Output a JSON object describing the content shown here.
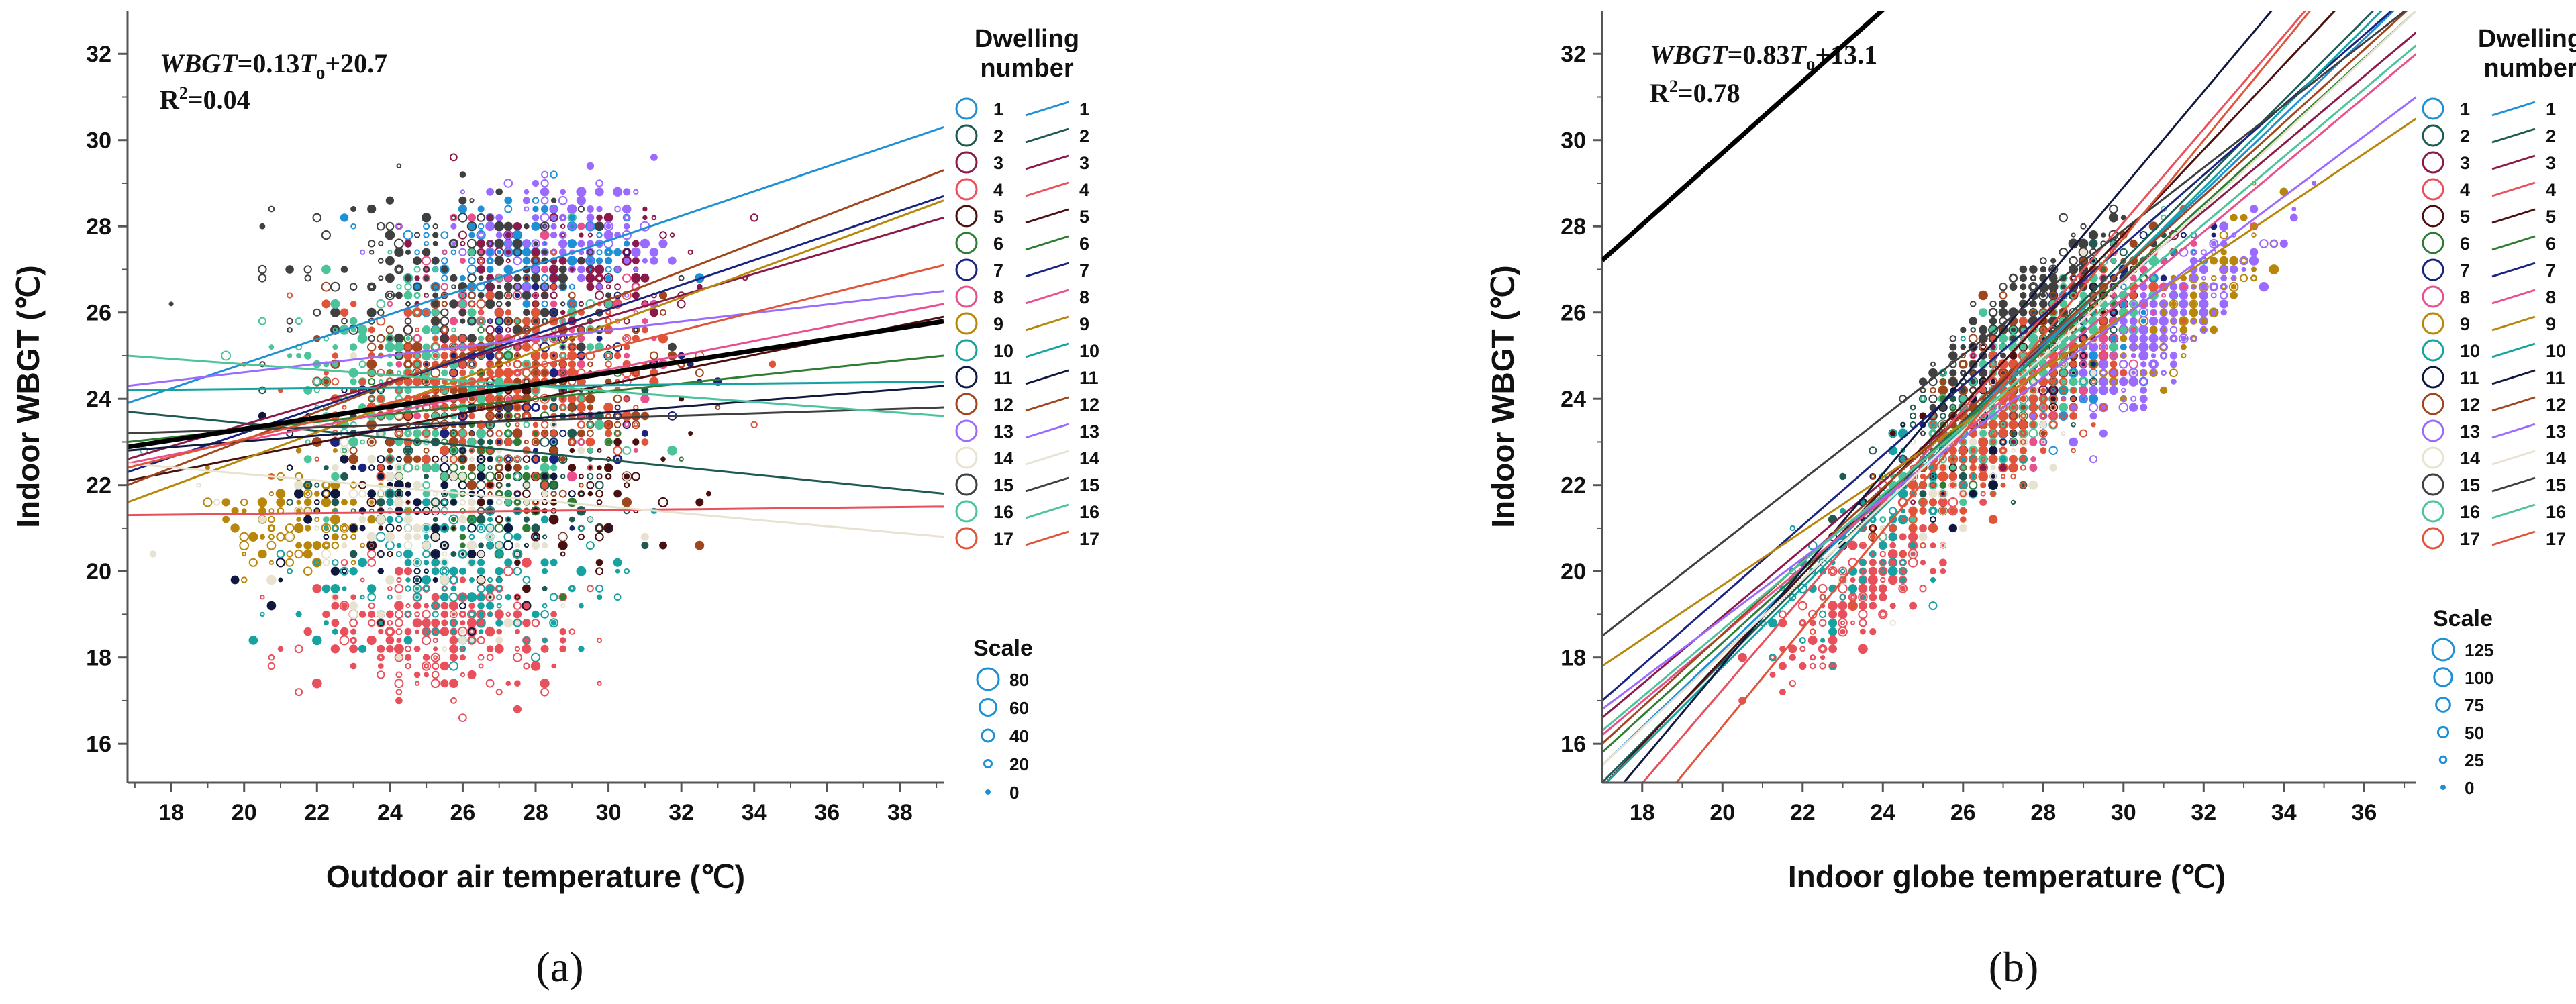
{
  "series_colors": [
    "#1e90d6",
    "#1f5a52",
    "#8b1a4a",
    "#e8505b",
    "#4a1010",
    "#2e7d32",
    "#1a237e",
    "#e84f8c",
    "#b8860b",
    "#17a2a2",
    "#101840",
    "#a0461e",
    "#9b6bff",
    "#e8e2d0",
    "#404040",
    "#4cc49a",
    "#e0543a"
  ],
  "panels": [
    {
      "id": "a",
      "panel_label": "(a)",
      "xlabel": "Outdoor air temperature (℃)",
      "ylabel": "Indoor WBGT (℃)",
      "eq_lhs": "WBGT",
      "eq_rhs_a": "=0.13",
      "eq_var": "T",
      "eq_sub": "o",
      "eq_rhs_b": "+20.7",
      "r2_prefix": "R",
      "r2_sup": "2",
      "r2_value": "=0.04",
      "legend_title_1": "Dwelling",
      "legend_title_2": "number",
      "scale_title": "Scale",
      "scale_entries": [
        "80",
        "60",
        "40",
        "20",
        "0"
      ],
      "xticks": [
        "18",
        "20",
        "22",
        "24",
        "26",
        "28",
        "30",
        "32",
        "34",
        "36",
        "38"
      ],
      "yticks": [
        "16",
        "18",
        "20",
        "22",
        "24",
        "26",
        "28",
        "30",
        "32"
      ]
    },
    {
      "id": "b",
      "panel_label": "(b)",
      "xlabel": "Indoor globe temperature (℃)",
      "ylabel": "Indoor WBGT (℃)",
      "eq_lhs": "WBGT",
      "eq_rhs_a": "=0.83",
      "eq_var": "T",
      "eq_sub": "o",
      "eq_rhs_b": "+13.1",
      "r2_prefix": "R",
      "r2_sup": "2",
      "r2_value": "=0.78",
      "legend_title_1": "Dwelling",
      "legend_title_2": "number",
      "scale_title": "Scale",
      "scale_entries": [
        "125",
        "100",
        "75",
        "50",
        "25",
        "0"
      ],
      "xticks": [
        "18",
        "20",
        "22",
        "24",
        "26",
        "28",
        "30",
        "32",
        "34",
        "36"
      ],
      "yticks": [
        "16",
        "18",
        "20",
        "22",
        "24",
        "26",
        "28",
        "30",
        "32"
      ]
    }
  ],
  "legend_numbers": [
    "1",
    "2",
    "3",
    "4",
    "5",
    "6",
    "7",
    "8",
    "9",
    "10",
    "11",
    "12",
    "13",
    "14",
    "15",
    "16",
    "17"
  ],
  "chart_data": [
    {
      "type": "scatter",
      "xlabel": "Outdoor air temperature (℃)",
      "ylabel": "Indoor WBGT (℃)",
      "xlim": [
        16.8,
        39.2
      ],
      "ylim": [
        15.1,
        33
      ],
      "pooled_fit": {
        "slope": 0.13,
        "intercept": 20.7,
        "r2": 0.04
      },
      "fit_lines": [
        {
          "name": "1",
          "y_at_xmin": 23.9,
          "y_at_xmax": 30.3
        },
        {
          "name": "2",
          "y_at_xmin": 23.7,
          "y_at_xmax": 21.8
        },
        {
          "name": "3",
          "y_at_xmin": 22.6,
          "y_at_xmax": 28.2
        },
        {
          "name": "4",
          "y_at_xmin": 21.3,
          "y_at_xmax": 21.5
        },
        {
          "name": "5",
          "y_at_xmin": 22.1,
          "y_at_xmax": 25.9
        },
        {
          "name": "6",
          "y_at_xmin": 23.0,
          "y_at_xmax": 25.0
        },
        {
          "name": "7",
          "y_at_xmin": 22.3,
          "y_at_xmax": 28.7
        },
        {
          "name": "8",
          "y_at_xmin": 22.5,
          "y_at_xmax": 26.2
        },
        {
          "name": "9",
          "y_at_xmin": 21.6,
          "y_at_xmax": 28.6
        },
        {
          "name": "10",
          "y_at_xmin": 24.2,
          "y_at_xmax": 24.4
        },
        {
          "name": "11",
          "y_at_xmin": 22.8,
          "y_at_xmax": 24.3
        },
        {
          "name": "12",
          "y_at_xmin": 22.0,
          "y_at_xmax": 29.3
        },
        {
          "name": "13",
          "y_at_xmin": 24.3,
          "y_at_xmax": 26.5
        },
        {
          "name": "14",
          "y_at_xmin": 22.5,
          "y_at_xmax": 20.8
        },
        {
          "name": "15",
          "y_at_xmin": 23.2,
          "y_at_xmax": 23.8
        },
        {
          "name": "16",
          "y_at_xmin": 25.0,
          "y_at_xmax": 23.6
        },
        {
          "name": "17",
          "y_at_xmin": 22.4,
          "y_at_xmax": 27.1
        }
      ],
      "scatter_clusters": [
        {
          "series": "1",
          "cx": 27.5,
          "cy": 27.3,
          "sx": 3.0,
          "sy": 1.3,
          "n": 160
        },
        {
          "series": "2",
          "cx": 26.5,
          "cy": 22.5,
          "sx": 3.5,
          "sy": 2.0,
          "n": 170
        },
        {
          "series": "3",
          "cx": 28.5,
          "cy": 27.0,
          "sx": 3.0,
          "sy": 1.4,
          "n": 140
        },
        {
          "series": "4",
          "cx": 25.5,
          "cy": 18.6,
          "sx": 3.2,
          "sy": 1.2,
          "n": 260
        },
        {
          "series": "5",
          "cx": 28.0,
          "cy": 22.0,
          "sx": 3.5,
          "sy": 2.2,
          "n": 120
        },
        {
          "series": "6",
          "cx": 27.0,
          "cy": 23.0,
          "sx": 3.5,
          "sy": 2.2,
          "n": 120
        },
        {
          "series": "7",
          "cx": 27.5,
          "cy": 24.5,
          "sx": 3.2,
          "sy": 2.0,
          "n": 110
        },
        {
          "series": "8",
          "cx": 28.0,
          "cy": 25.5,
          "sx": 3.2,
          "sy": 1.8,
          "n": 110
        },
        {
          "series": "9",
          "cx": 21.5,
          "cy": 21.3,
          "sx": 2.0,
          "sy": 0.9,
          "n": 120
        },
        {
          "series": "10",
          "cx": 26.0,
          "cy": 20.0,
          "sx": 3.6,
          "sy": 1.6,
          "n": 200
        },
        {
          "series": "11",
          "cx": 25.0,
          "cy": 21.5,
          "sx": 3.5,
          "sy": 2.3,
          "n": 120
        },
        {
          "series": "12",
          "cx": 27.0,
          "cy": 24.0,
          "sx": 3.8,
          "sy": 1.8,
          "n": 260
        },
        {
          "series": "13",
          "cx": 28.5,
          "cy": 27.8,
          "sx": 2.6,
          "sy": 1.1,
          "n": 140
        },
        {
          "series": "14",
          "cx": 25.0,
          "cy": 21.5,
          "sx": 3.8,
          "sy": 2.0,
          "n": 140
        },
        {
          "series": "15",
          "cx": 26.0,
          "cy": 26.5,
          "sx": 3.8,
          "sy": 1.8,
          "n": 220
        },
        {
          "series": "16",
          "cx": 25.5,
          "cy": 24.5,
          "sx": 3.8,
          "sy": 2.0,
          "n": 230
        },
        {
          "series": "17",
          "cx": 27.0,
          "cy": 24.5,
          "sx": 3.8,
          "sy": 1.9,
          "n": 300
        }
      ]
    },
    {
      "type": "scatter",
      "xlabel": "Indoor globe temperature (℃)",
      "ylabel": "Indoor WBGT (℃)",
      "xlim": [
        17,
        37.3
      ],
      "ylim": [
        15.1,
        33
      ],
      "pooled_fit": {
        "slope": 0.83,
        "intercept": 13.1,
        "r2": 0.78
      },
      "fit_lines": [
        {
          "name": "1",
          "x0": 17,
          "y0": 15.5,
          "x1": 37.3,
          "y1": 33.5
        },
        {
          "name": "2",
          "x0": 17,
          "y0": 15.1,
          "x1": 37.3,
          "y1": 34.0
        },
        {
          "name": "3",
          "x0": 17,
          "y0": 16.6,
          "x1": 37.3,
          "y1": 32.5
        },
        {
          "name": "4",
          "x0": 17,
          "y0": 14.0,
          "x1": 37.3,
          "y1": 36.0
        },
        {
          "name": "5",
          "x0": 17,
          "y0": 15.0,
          "x1": 37.3,
          "y1": 35.0
        },
        {
          "name": "6",
          "x0": 17,
          "y0": 15.8,
          "x1": 37.3,
          "y1": 33.0
        },
        {
          "name": "7",
          "x0": 17,
          "y0": 17.0,
          "x1": 37.3,
          "y1": 33.5
        },
        {
          "name": "8",
          "x0": 17,
          "y0": 16.2,
          "x1": 37.3,
          "y1": 32.0
        },
        {
          "name": "9",
          "x0": 17,
          "y0": 17.8,
          "x1": 37.3,
          "y1": 30.5
        },
        {
          "name": "10",
          "x0": 17,
          "y0": 15.0,
          "x1": 37.3,
          "y1": 33.8
        },
        {
          "name": "11",
          "x0": 17,
          "y0": 14.5,
          "x1": 37.3,
          "y1": 37.0
        },
        {
          "name": "12",
          "x0": 17,
          "y0": 16.0,
          "x1": 37.3,
          "y1": 33.2
        },
        {
          "name": "13",
          "x0": 17,
          "y0": 16.8,
          "x1": 37.3,
          "y1": 31.0
        },
        {
          "name": "14",
          "x0": 17,
          "y0": 15.5,
          "x1": 37.3,
          "y1": 33.0
        },
        {
          "name": "15",
          "x0": 17,
          "y0": 18.5,
          "x1": 37.3,
          "y1": 33.2
        },
        {
          "name": "16",
          "x0": 17,
          "y0": 16.3,
          "x1": 37.3,
          "y1": 32.2
        },
        {
          "name": "17",
          "x0": 17,
          "y0": 13.0,
          "x1": 37.3,
          "y1": 36.0
        }
      ],
      "scatter_clusters": [
        {
          "series": "1",
          "cx": 29.0,
          "cy": 25.0,
          "sx": 2.2,
          "sy": 2.0,
          "n": 120
        },
        {
          "series": "2",
          "cx": 27.5,
          "cy": 24.5,
          "sx": 2.5,
          "sy": 2.3,
          "n": 140
        },
        {
          "series": "3",
          "cx": 28.0,
          "cy": 25.0,
          "sx": 2.2,
          "sy": 2.0,
          "n": 110
        },
        {
          "series": "4",
          "cx": 23.5,
          "cy": 19.5,
          "sx": 1.8,
          "sy": 1.5,
          "n": 220
        },
        {
          "series": "5",
          "cx": 27.5,
          "cy": 24.5,
          "sx": 2.2,
          "sy": 2.0,
          "n": 110
        },
        {
          "series": "6",
          "cx": 27.5,
          "cy": 24.5,
          "sx": 2.2,
          "sy": 2.0,
          "n": 110
        },
        {
          "series": "7",
          "cx": 28.5,
          "cy": 25.5,
          "sx": 2.0,
          "sy": 1.8,
          "n": 110
        },
        {
          "series": "8",
          "cx": 29.0,
          "cy": 25.0,
          "sx": 2.2,
          "sy": 2.0,
          "n": 110
        },
        {
          "series": "9",
          "cx": 31.5,
          "cy": 26.0,
          "sx": 1.8,
          "sy": 1.6,
          "n": 140
        },
        {
          "series": "10",
          "cx": 25.0,
          "cy": 22.0,
          "sx": 2.8,
          "sy": 2.5,
          "n": 200
        },
        {
          "series": "11",
          "cx": 27.0,
          "cy": 24.0,
          "sx": 2.5,
          "sy": 2.3,
          "n": 110
        },
        {
          "series": "12",
          "cx": 27.5,
          "cy": 25.0,
          "sx": 2.3,
          "sy": 2.0,
          "n": 220
        },
        {
          "series": "13",
          "cx": 31.0,
          "cy": 25.5,
          "sx": 2.0,
          "sy": 1.8,
          "n": 200
        },
        {
          "series": "14",
          "cx": 27.0,
          "cy": 23.5,
          "sx": 2.5,
          "sy": 2.2,
          "n": 120
        },
        {
          "series": "15",
          "cx": 27.5,
          "cy": 26.0,
          "sx": 2.0,
          "sy": 1.6,
          "n": 200
        },
        {
          "series": "16",
          "cx": 27.5,
          "cy": 24.5,
          "sx": 2.4,
          "sy": 2.2,
          "n": 200
        },
        {
          "series": "17",
          "cx": 27.0,
          "cy": 23.5,
          "sx": 2.5,
          "sy": 2.2,
          "n": 260
        }
      ]
    }
  ]
}
